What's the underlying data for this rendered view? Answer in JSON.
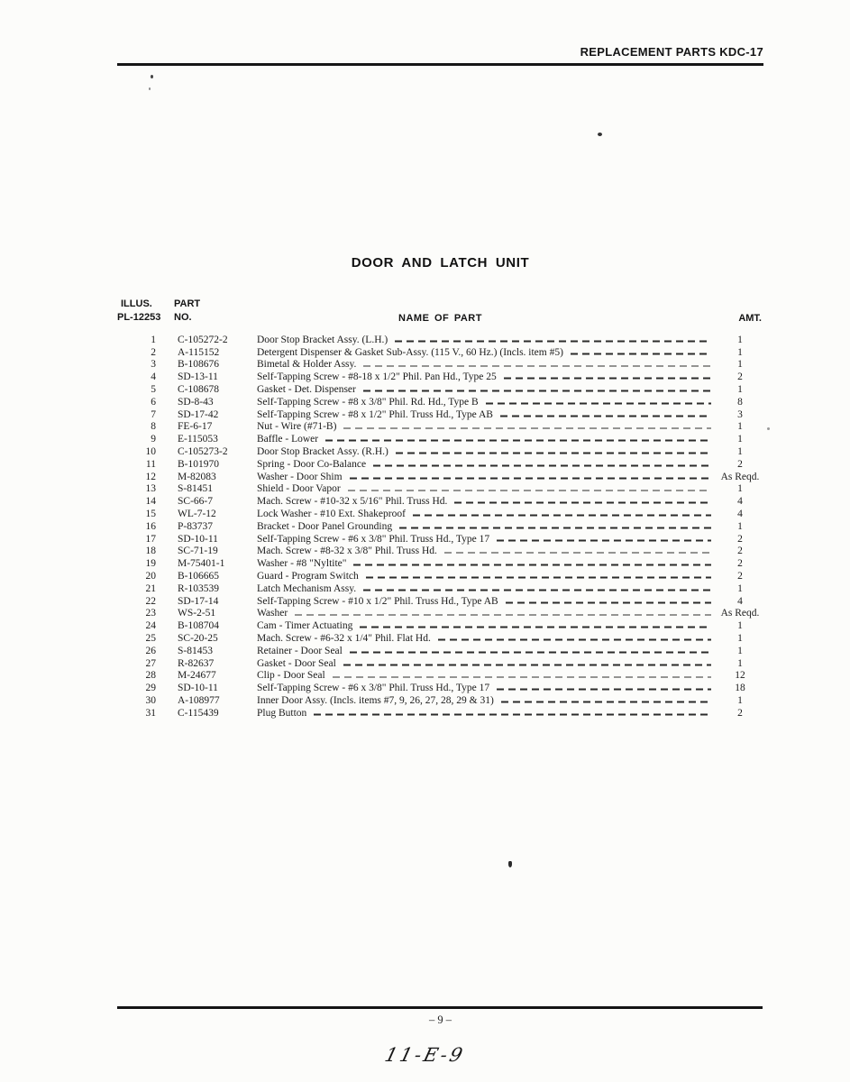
{
  "page": {
    "header": "REPLACEMENT PARTS KDC-17",
    "title": "DOOR AND LATCH UNIT",
    "page_number": "– 9 –",
    "handwritten_note": "11-E-9"
  },
  "table": {
    "headers": {
      "illus_line1": "ILLUS.",
      "illus_line2": "PL-12253",
      "part_line1": "PART",
      "part_line2": "NO.",
      "name": "NAME OF PART",
      "amt": "AMT."
    },
    "rows": [
      {
        "illus": "1",
        "part_no": "C-105272-2",
        "name": "Door Stop Bracket Assy. (L.H.)",
        "amt": "1"
      },
      {
        "illus": "2",
        "part_no": "A-115152",
        "name": "Detergent Dispenser & Gasket Sub-Assy. (115 V., 60 Hz.) (Incls. item #5)",
        "amt": "1"
      },
      {
        "illus": "3",
        "part_no": "B-108676",
        "name": "Bimetal & Holder Assy.",
        "amt": "1"
      },
      {
        "illus": "4",
        "part_no": "SD-13-11",
        "name": "Self-Tapping Screw - #8-18 x 1/2\" Phil. Pan Hd., Type 25",
        "amt": "2"
      },
      {
        "illus": "5",
        "part_no": "C-108678",
        "name": "Gasket - Det. Dispenser",
        "amt": "1"
      },
      {
        "illus": "6",
        "part_no": "SD-8-43",
        "name": "Self-Tapping Screw - #8 x 3/8\" Phil. Rd. Hd., Type B",
        "amt": "8"
      },
      {
        "illus": "7",
        "part_no": "SD-17-42",
        "name": "Self-Tapping Screw - #8 x 1/2\" Phil. Truss Hd., Type AB",
        "amt": "3"
      },
      {
        "illus": "8",
        "part_no": "FE-6-17",
        "name": "Nut - Wire (#71-B)",
        "amt": "1"
      },
      {
        "illus": "9",
        "part_no": "E-115053",
        "name": "Baffle - Lower",
        "amt": "1"
      },
      {
        "illus": "10",
        "part_no": "C-105273-2",
        "name": "Door Stop Bracket Assy. (R.H.)",
        "amt": "1"
      },
      {
        "illus": "11",
        "part_no": "B-101970",
        "name": "Spring - Door Co-Balance",
        "amt": "2"
      },
      {
        "illus": "12",
        "part_no": "M-82083",
        "name": "Washer - Door Shim",
        "amt": "As Reqd."
      },
      {
        "illus": "13",
        "part_no": "S-81451",
        "name": "Shield - Door Vapor",
        "amt": "1"
      },
      {
        "illus": "14",
        "part_no": "SC-66-7",
        "name": "Mach. Screw - #10-32 x 5/16\" Phil. Truss Hd.",
        "amt": "4"
      },
      {
        "illus": "15",
        "part_no": "WL-7-12",
        "name": "Lock Washer - #10 Ext. Shakeproof",
        "amt": "4"
      },
      {
        "illus": "16",
        "part_no": "P-83737",
        "name": "Bracket - Door Panel Grounding",
        "amt": "1"
      },
      {
        "illus": "17",
        "part_no": "SD-10-11",
        "name": "Self-Tapping Screw - #6 x 3/8\" Phil. Truss Hd., Type 17",
        "amt": "2"
      },
      {
        "illus": "18",
        "part_no": "SC-71-19",
        "name": "Mach. Screw - #8-32 x 3/8\" Phil. Truss Hd.",
        "amt": "2"
      },
      {
        "illus": "19",
        "part_no": "M-75401-1",
        "name": "Washer - #8 \"Nyltite\"",
        "amt": "2"
      },
      {
        "illus": "20",
        "part_no": "B-106665",
        "name": "Guard - Program Switch",
        "amt": "2"
      },
      {
        "illus": "21",
        "part_no": "R-103539",
        "name": "Latch Mechanism Assy.",
        "amt": "1"
      },
      {
        "illus": "22",
        "part_no": "SD-17-14",
        "name": "Self-Tapping Screw - #10 x 1/2\" Phil. Truss Hd., Type AB",
        "amt": "4"
      },
      {
        "illus": "23",
        "part_no": "WS-2-51",
        "name": "Washer",
        "amt": "As Reqd."
      },
      {
        "illus": "24",
        "part_no": "B-108704",
        "name": "Cam - Timer Actuating",
        "amt": "1"
      },
      {
        "illus": "25",
        "part_no": "SC-20-25",
        "name": "Mach. Screw - #6-32 x 1/4\" Phil. Flat Hd.",
        "amt": "1"
      },
      {
        "illus": "26",
        "part_no": "S-81453",
        "name": "Retainer - Door Seal",
        "amt": "1"
      },
      {
        "illus": "27",
        "part_no": "R-82637",
        "name": "Gasket - Door Seal",
        "amt": "1"
      },
      {
        "illus": "28",
        "part_no": "M-24677",
        "name": "Clip - Door Seal",
        "amt": "12"
      },
      {
        "illus": "29",
        "part_no": "SD-10-11",
        "name": "Self-Tapping Screw - #6 x 3/8\" Phil. Truss Hd., Type 17",
        "amt": "18"
      },
      {
        "illus": "30",
        "part_no": "A-108977",
        "name": "Inner Door Assy. (Incls. items #7, 9, 26, 27, 28, 29 & 31)",
        "amt": "1"
      },
      {
        "illus": "31",
        "part_no": "C-115439",
        "name": "Plug Button",
        "amt": "2"
      }
    ]
  }
}
